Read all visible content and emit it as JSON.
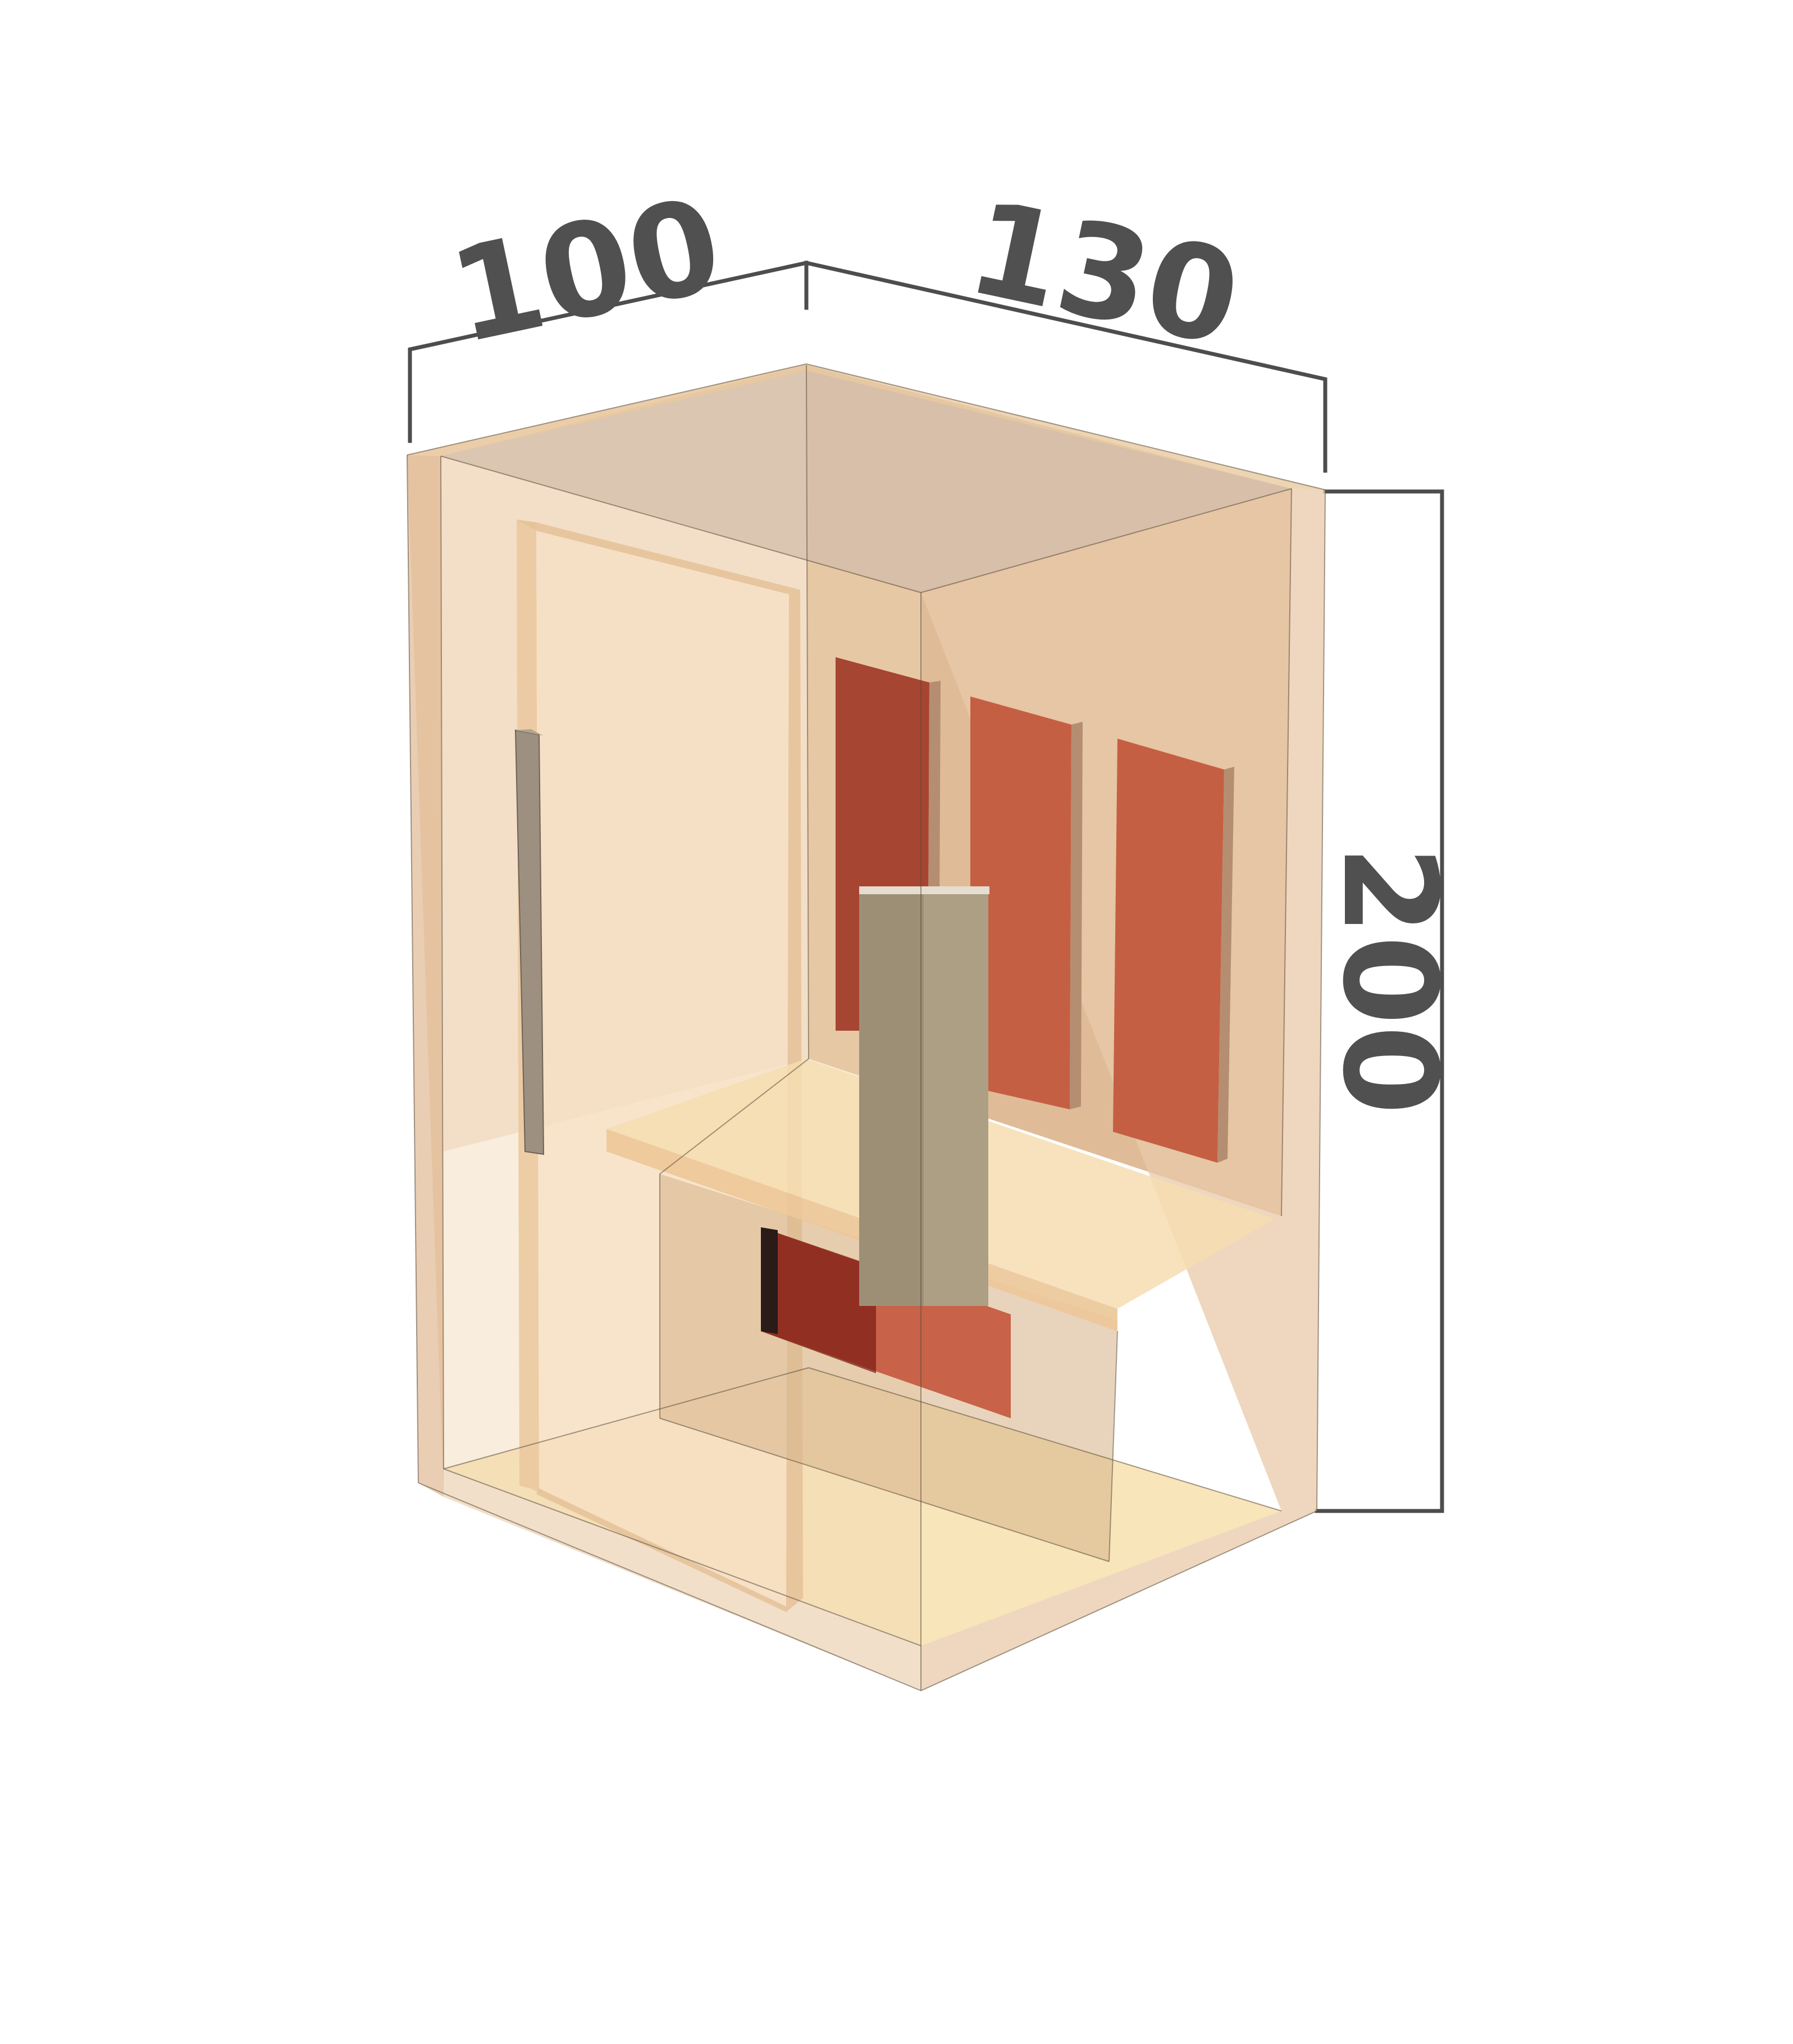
{
  "dimensions": {
    "depth_label": "100",
    "width_label": "130",
    "height_label": "200"
  },
  "colors": {
    "background": "#ffffff",
    "dimension_lines": "#4d4d4d",
    "dimension_text": "#505050",
    "cabin_wood": "#e8b88a",
    "heater_panel": "#c55a3a",
    "heater_panel_dark": "#a54532",
    "column": "#9a8a70"
  },
  "components": {
    "cabin": "sauna-cabin",
    "door": "glass-door",
    "handle": "door-handle",
    "bench": "bench",
    "heaters": "infrared-heater-panels",
    "floor_heater": "floor-heater-panel",
    "column": "control-column"
  }
}
